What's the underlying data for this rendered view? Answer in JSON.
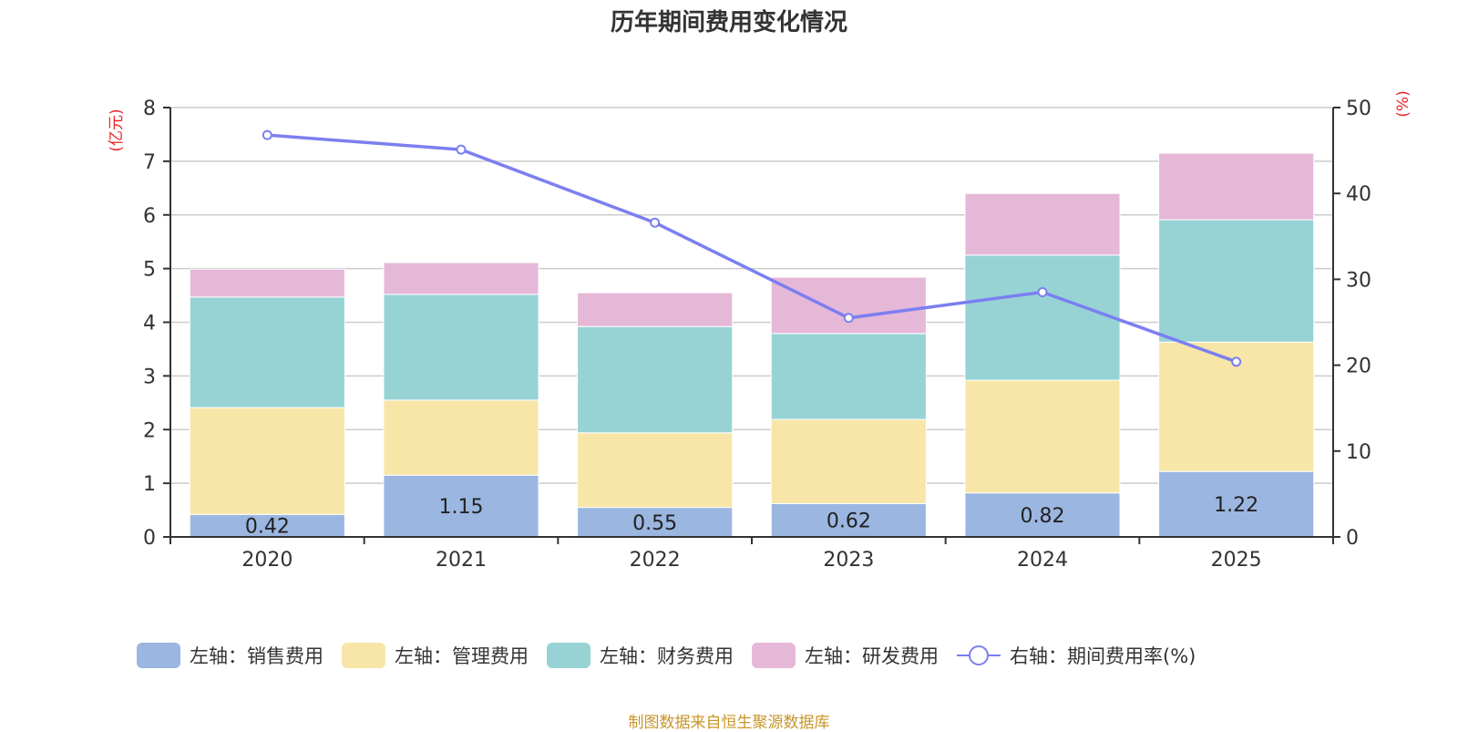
{
  "chart_data": {
    "type": "bar",
    "stacked": true,
    "title": "历年期间费用变化情况",
    "categories": [
      "2020",
      "2021",
      "2022",
      "2023",
      "2024",
      "2025"
    ],
    "left_axis": {
      "label": "(亿元)",
      "ylim": [
        0,
        8
      ],
      "ticks": [
        0,
        1,
        2,
        3,
        4,
        5,
        6,
        7,
        8
      ]
    },
    "right_axis": {
      "label": "(%)",
      "ylim": [
        0,
        50
      ],
      "ticks": [
        0,
        10,
        20,
        30,
        40,
        50
      ]
    },
    "series": [
      {
        "name": "左轴：销售费用",
        "axis": "left",
        "type": "bar",
        "color": "#9bb6e0",
        "values": [
          0.42,
          1.15,
          0.55,
          0.62,
          0.82,
          1.22
        ],
        "show_labels": true
      },
      {
        "name": "左轴：管理费用",
        "axis": "left",
        "type": "bar",
        "color": "#f7e6a8",
        "values": [
          1.99,
          1.4,
          1.39,
          1.57,
          2.1,
          2.41
        ]
      },
      {
        "name": "左轴：财务费用",
        "axis": "left",
        "type": "bar",
        "color": "#97d3d4",
        "values": [
          2.06,
          1.97,
          1.98,
          1.6,
          2.33,
          2.28
        ]
      },
      {
        "name": "左轴：研发费用",
        "axis": "left",
        "type": "bar",
        "color": "#e6b8d8",
        "values": [
          0.52,
          0.59,
          0.63,
          1.05,
          1.15,
          1.24
        ]
      },
      {
        "name": "右轴：期间费用率(%)",
        "axis": "right",
        "type": "line",
        "color": "#7b7ff0",
        "values": [
          46.8,
          45.1,
          36.6,
          25.5,
          28.5,
          20.4
        ]
      }
    ],
    "grid": true,
    "legend_position": "bottom"
  },
  "source": "制图数据来自恒生聚源数据库"
}
